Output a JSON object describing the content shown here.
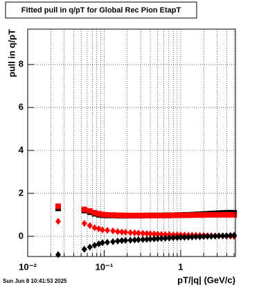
{
  "chart_data": {
    "type": "scatter",
    "title": "Fitted pull in q/pT for Global Rec Pion EtapT",
    "y_label": "pull in q/pT",
    "x_label": "pT/|q| (GeV/c)",
    "footer": "Sun Jun  8 10:41:53 2025",
    "xlog": true,
    "grid": true,
    "xlim": [
      0.01,
      5.2
    ],
    "ylim": [
      -0.94,
      9.65
    ],
    "xticks": [
      {
        "value": 0.01,
        "label": "10⁻²"
      },
      {
        "value": 0.1,
        "label": "10⁻¹"
      },
      1
    ],
    "xminor": [
      0.02,
      0.03,
      0.04,
      0.05,
      0.06,
      0.07,
      0.08,
      0.09,
      0.2,
      0.3,
      0.4,
      0.5,
      0.6,
      0.7,
      0.8,
      0.9,
      2,
      3,
      4,
      5
    ],
    "yticks": [
      0,
      2,
      4,
      6,
      8
    ],
    "x": [
      0.025,
      0.055,
      0.065,
      0.075,
      0.085,
      0.095,
      0.11,
      0.13,
      0.15,
      0.17,
      0.19,
      0.22,
      0.25,
      0.28,
      0.32,
      0.36,
      0.4,
      0.45,
      0.5,
      0.56,
      0.63,
      0.71,
      0.8,
      0.9,
      1.0,
      1.12,
      1.26,
      1.41,
      1.58,
      1.78,
      2.0,
      2.24,
      2.51,
      2.82,
      3.16,
      3.55,
      3.98,
      4.47,
      5.0
    ],
    "series": [
      {
        "color": "#000000",
        "marker": "square",
        "values": [
          1.3,
          1.2,
          1.12,
          1.05,
          1.0,
          0.98,
          0.97,
          0.97,
          0.96,
          0.96,
          0.96,
          0.96,
          0.96,
          0.96,
          0.96,
          0.97,
          0.97,
          0.97,
          0.97,
          0.97,
          0.98,
          0.98,
          0.98,
          0.99,
          0.99,
          1.0,
          1.0,
          1.01,
          1.02,
          1.03,
          1.04,
          1.05,
          1.06,
          1.07,
          1.08,
          1.09,
          1.1,
          1.1,
          1.1
        ]
      },
      {
        "color": "#ff0000",
        "marker": "square",
        "values": [
          1.4,
          1.25,
          1.18,
          1.1,
          1.05,
          1.02,
          1.0,
          0.99,
          0.98,
          0.98,
          0.97,
          0.97,
          0.97,
          0.97,
          0.97,
          0.97,
          0.97,
          0.97,
          0.97,
          0.97,
          0.97,
          0.97,
          0.98,
          0.98,
          0.98,
          0.98,
          0.98,
          0.99,
          0.99,
          0.99,
          0.99,
          1.0,
          1.0,
          1.0,
          1.0,
          1.0,
          1.0,
          1.0,
          1.0
        ]
      },
      {
        "color": "#ff0000",
        "marker": "diamond",
        "values": [
          0.7,
          0.6,
          0.5,
          0.4,
          0.35,
          0.3,
          0.28,
          0.25,
          0.22,
          0.2,
          0.19,
          0.17,
          0.16,
          0.15,
          0.14,
          0.13,
          0.12,
          0.11,
          0.1,
          0.09,
          0.08,
          0.08,
          0.07,
          0.07,
          0.06,
          0.06,
          0.05,
          0.05,
          0.05,
          0.04,
          0.04,
          0.03,
          0.03,
          0.02,
          0.02,
          0.02,
          0.01,
          0.01,
          0.0
        ]
      },
      {
        "color": "#000000",
        "marker": "diamond",
        "values": [
          -0.85,
          -0.6,
          -0.5,
          -0.42,
          -0.35,
          -0.3,
          -0.28,
          -0.25,
          -0.22,
          -0.2,
          -0.19,
          -0.18,
          -0.17,
          -0.16,
          -0.15,
          -0.14,
          -0.13,
          -0.12,
          -0.11,
          -0.1,
          -0.09,
          -0.08,
          -0.07,
          -0.06,
          -0.05,
          -0.05,
          -0.04,
          -0.03,
          -0.02,
          -0.02,
          -0.01,
          0.0,
          0.0,
          0.01,
          0.02,
          0.02,
          0.03,
          0.04,
          0.05
        ]
      }
    ]
  }
}
